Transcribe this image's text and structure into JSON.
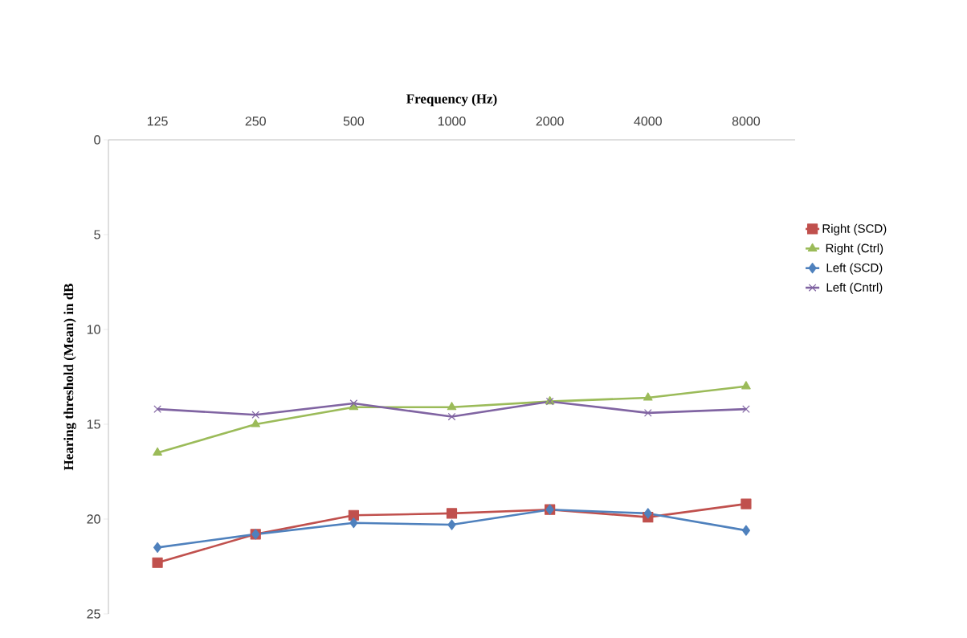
{
  "chart_data": {
    "type": "line",
    "xlabel": "Frequency (Hz)",
    "ylabel": "Hearing threshold (Mean) in dB",
    "categories": [
      "125",
      "250",
      "500",
      "1000",
      "2000",
      "4000",
      "8000"
    ],
    "ylim": [
      25,
      0
    ],
    "yticks": [
      0,
      5,
      10,
      15,
      20,
      25
    ],
    "grid": false,
    "legend": "right",
    "line_style": "solid",
    "series": [
      {
        "name": "Right (SCD)",
        "color": "#c0504d",
        "marker": "square",
        "values": [
          22.3,
          20.8,
          19.8,
          19.7,
          19.5,
          19.9,
          19.2
        ]
      },
      {
        "name": "Right (Ctrl)",
        "color": "#9bbb59",
        "marker": "triangle",
        "values": [
          16.5,
          15.0,
          14.1,
          14.1,
          13.8,
          13.6,
          13.0
        ]
      },
      {
        "name": "Left (SCD)",
        "color": "#4f81bd",
        "marker": "diamond",
        "values": [
          21.5,
          20.8,
          20.2,
          20.3,
          19.5,
          19.7,
          20.6
        ]
      },
      {
        "name": "Left (Cntrl)",
        "color": "#8064a2",
        "marker": "cross",
        "values": [
          14.2,
          14.5,
          13.9,
          14.6,
          13.8,
          14.4,
          14.2
        ]
      }
    ]
  }
}
